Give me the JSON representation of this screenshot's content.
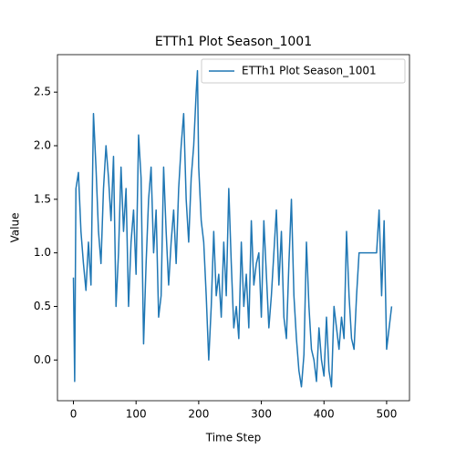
{
  "chart_data": {
    "type": "line",
    "title": "ETTh1 Plot Season_1001",
    "xlabel": "Time Step",
    "ylabel": "Value",
    "legend": "upper right",
    "x": [
      0,
      2,
      4,
      8,
      12,
      16,
      20,
      24,
      28,
      32,
      36,
      40,
      44,
      48,
      52,
      56,
      60,
      64,
      68,
      72,
      76,
      80,
      84,
      88,
      92,
      96,
      100,
      104,
      108,
      112,
      116,
      120,
      124,
      128,
      132,
      136,
      140,
      144,
      148,
      152,
      156,
      160,
      164,
      168,
      172,
      176,
      180,
      184,
      188,
      192,
      196,
      198,
      200,
      204,
      208,
      212,
      216,
      220,
      224,
      228,
      232,
      236,
      240,
      244,
      248,
      252,
      256,
      260,
      264,
      268,
      272,
      276,
      280,
      284,
      288,
      292,
      296,
      300,
      304,
      308,
      312,
      316,
      320,
      324,
      328,
      332,
      336,
      340,
      344,
      348,
      352,
      356,
      360,
      364,
      368,
      372,
      376,
      380,
      384,
      388,
      392,
      396,
      400,
      404,
      408,
      412,
      416,
      420,
      424,
      428,
      432,
      436,
      440,
      444,
      448,
      452,
      456,
      460,
      464,
      468,
      472,
      476,
      480,
      484,
      488,
      492,
      496,
      500,
      504,
      508
    ],
    "series": [
      {
        "name": "ETTh1 Plot Season_1001",
        "color": "#1f77b4",
        "values": [
          0.77,
          -0.2,
          1.6,
          1.75,
          1.2,
          0.9,
          0.65,
          1.1,
          0.7,
          2.3,
          1.8,
          1.2,
          0.9,
          1.6,
          2.0,
          1.7,
          1.3,
          1.9,
          0.5,
          1.0,
          1.8,
          1.2,
          1.6,
          0.5,
          1.1,
          1.4,
          0.8,
          2.1,
          1.7,
          0.15,
          0.9,
          1.5,
          1.8,
          1.0,
          1.4,
          0.4,
          0.6,
          1.8,
          1.2,
          0.7,
          1.1,
          1.4,
          0.9,
          1.6,
          2.0,
          2.3,
          1.5,
          1.1,
          1.7,
          2.0,
          2.5,
          2.7,
          1.8,
          1.3,
          1.1,
          0.6,
          0.0,
          0.5,
          1.2,
          0.6,
          0.8,
          0.4,
          1.1,
          0.6,
          1.6,
          0.9,
          0.3,
          0.5,
          0.2,
          1.1,
          0.5,
          0.8,
          0.3,
          1.3,
          0.7,
          0.9,
          1.0,
          0.4,
          1.3,
          0.8,
          0.3,
          0.6,
          1.0,
          1.4,
          0.7,
          1.2,
          0.4,
          0.2,
          0.9,
          1.5,
          0.6,
          0.2,
          -0.1,
          -0.25,
          0.05,
          1.1,
          0.5,
          0.1,
          0.0,
          -0.2,
          0.3,
          0.0,
          -0.15,
          0.4,
          -0.1,
          -0.25,
          0.5,
          0.3,
          0.1,
          0.4,
          0.2,
          1.2,
          0.6,
          0.2,
          0.1,
          0.6,
          1.0,
          1.0,
          1.0,
          1.0,
          1.0,
          1.0,
          1.0,
          1.0,
          1.4,
          0.6,
          1.3,
          0.1,
          0.3,
          0.5
        ]
      }
    ],
    "xlim": [
      -25.5,
      536.5
    ],
    "ylim": [
      -0.38,
      2.85
    ],
    "xticks": [
      0,
      100,
      200,
      300,
      400,
      500
    ],
    "yticks": [
      {
        "value": 0,
        "label": "0.0"
      },
      0.5,
      {
        "value": 1,
        "label": "1.0"
      },
      1.5,
      {
        "value": 2,
        "label": "2.0"
      },
      2.5
    ]
  }
}
